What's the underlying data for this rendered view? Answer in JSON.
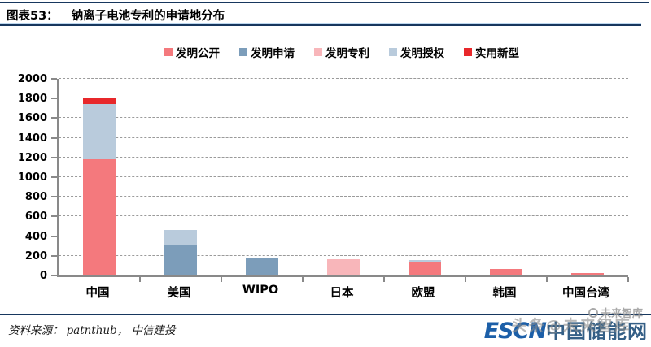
{
  "header": {
    "label_prefix": "图表53：",
    "title": "钠离子电池专利的申请地分布"
  },
  "footer": {
    "source_label": "资料来源：",
    "source_value": "patnthub， 中信建投"
  },
  "watermark": {
    "escn": "ESCN",
    "site_name": "中国储能网",
    "overlay_text": "头条@未来智库",
    "small_text": "未来智库"
  },
  "chart_data": {
    "type": "bar",
    "stacked": true,
    "title": "钠离子电池专利的申请地分布",
    "xlabel": "",
    "ylabel": "",
    "categories": [
      "中国",
      "美国",
      "WIPO",
      "日本",
      "欧盟",
      "韩国",
      "中国台湾"
    ],
    "series": [
      {
        "name": "发明公开",
        "color": "#F4797D",
        "values": [
          1185,
          0,
          0,
          0,
          130,
          65,
          25
        ]
      },
      {
        "name": "发明申请",
        "color": "#7C9DBA",
        "values": [
          0,
          305,
          185,
          0,
          0,
          0,
          0
        ]
      },
      {
        "name": "发明专利",
        "color": "#F8B6BA",
        "values": [
          0,
          0,
          0,
          165,
          0,
          0,
          0
        ]
      },
      {
        "name": "发明授权",
        "color": "#B9CBDC",
        "values": [
          560,
          160,
          0,
          0,
          25,
          0,
          0
        ]
      },
      {
        "name": "实用新型",
        "color": "#E8282B",
        "values": [
          55,
          0,
          0,
          0,
          0,
          0,
          0
        ]
      }
    ],
    "totals": [
      1800,
      465,
      185,
      165,
      155,
      65,
      25
    ],
    "ylim": [
      0,
      2000
    ],
    "ytick_step": 200,
    "grid": "horizontal-dashed",
    "legend_position": "top",
    "accent_rule_color": "#17375E"
  }
}
